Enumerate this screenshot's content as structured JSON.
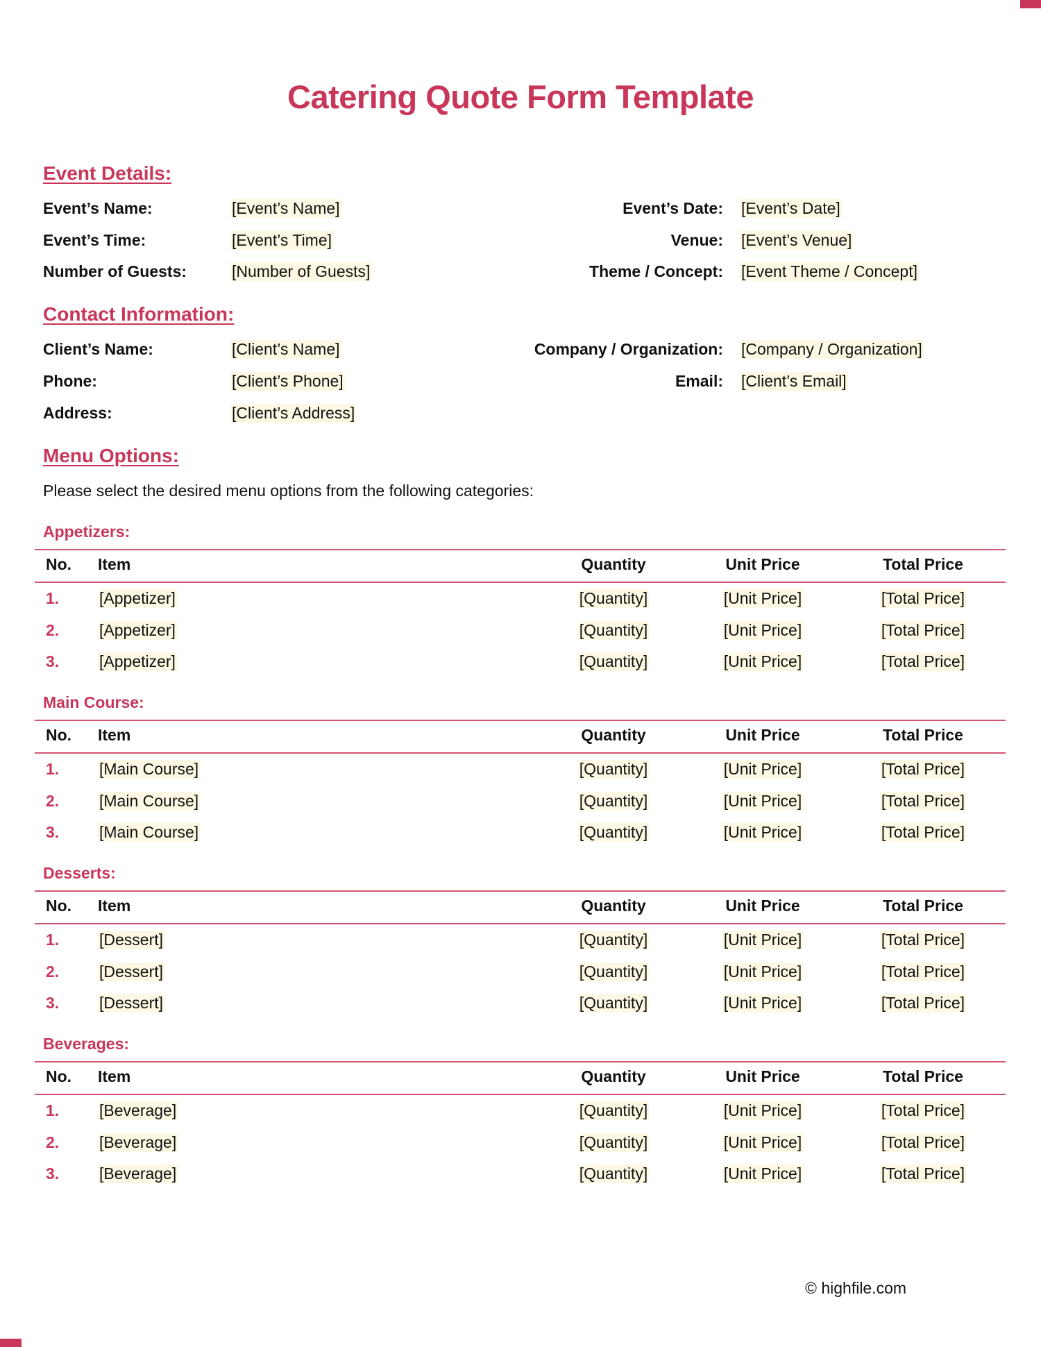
{
  "title": "Catering Quote Form Template",
  "event_details": {
    "heading": "Event Details:",
    "left": [
      {
        "label": "Event’s Name:",
        "value": "[Event’s Name]"
      },
      {
        "label": "Event’s Time:",
        "value": "[Event’s Time]"
      },
      {
        "label": "Number of Guests:",
        "value": "[Number of Guests]"
      }
    ],
    "right": [
      {
        "label": "Event’s Date:",
        "value": "[Event’s Date]"
      },
      {
        "label": "Venue:",
        "value": "[Event’s Venue]"
      },
      {
        "label": "Theme / Concept:",
        "value": "[Event Theme / Concept]"
      }
    ]
  },
  "contact_information": {
    "heading": "Contact Information:",
    "left": [
      {
        "label": "Client’s Name:",
        "value": "[Client’s Name]"
      },
      {
        "label": "Phone:",
        "value": "[Client’s Phone]"
      },
      {
        "label": "Address:",
        "value": "[Client’s Address]"
      }
    ],
    "right": [
      {
        "label": "Company / Organization:",
        "value": "[Company / Organization]"
      },
      {
        "label": "Email:",
        "value": "[Client’s Email]"
      }
    ]
  },
  "menu_options": {
    "heading": "Menu Options:",
    "instruction": "Please select the desired menu options from the following categories:",
    "columns": [
      "No.",
      "Item",
      "Quantity",
      "Unit Price",
      "Total Price"
    ],
    "categories": [
      {
        "name": "Appetizers:",
        "rows": [
          [
            "1.",
            "[Appetizer]",
            "[Quantity]",
            "[Unit Price]",
            "[Total Price]"
          ],
          [
            "2.",
            "[Appetizer]",
            "[Quantity]",
            "[Unit Price]",
            "[Total Price]"
          ],
          [
            "3.",
            "[Appetizer]",
            "[Quantity]",
            "[Unit Price]",
            "[Total Price]"
          ]
        ]
      },
      {
        "name": "Main Course:",
        "rows": [
          [
            "1.",
            "[Main Course]",
            "[Quantity]",
            "[Unit Price]",
            "[Total Price]"
          ],
          [
            "2.",
            "[Main Course]",
            "[Quantity]",
            "[Unit Price]",
            "[Total Price]"
          ],
          [
            "3.",
            "[Main Course]",
            "[Quantity]",
            "[Unit Price]",
            "[Total Price]"
          ]
        ]
      },
      {
        "name": "Desserts:",
        "rows": [
          [
            "1.",
            "[Dessert]",
            "[Quantity]",
            "[Unit Price]",
            "[Total Price]"
          ],
          [
            "2.",
            "[Dessert]",
            "[Quantity]",
            "[Unit Price]",
            "[Total Price]"
          ],
          [
            "3.",
            "[Dessert]",
            "[Quantity]",
            "[Unit Price]",
            "[Total Price]"
          ]
        ]
      },
      {
        "name": "Beverages:",
        "rows": [
          [
            "1.",
            "[Beverage]",
            "[Quantity]",
            "[Unit Price]",
            "[Total Price]"
          ],
          [
            "2.",
            "[Beverage]",
            "[Quantity]",
            "[Unit Price]",
            "[Total Price]"
          ],
          [
            "3.",
            "[Beverage]",
            "[Quantity]",
            "[Unit Price]",
            "[Total Price]"
          ]
        ]
      }
    ]
  },
  "footer": "© highfile.com",
  "colors": {
    "accent": "#c8375a",
    "field_highlight": "#fdf8e3"
  }
}
